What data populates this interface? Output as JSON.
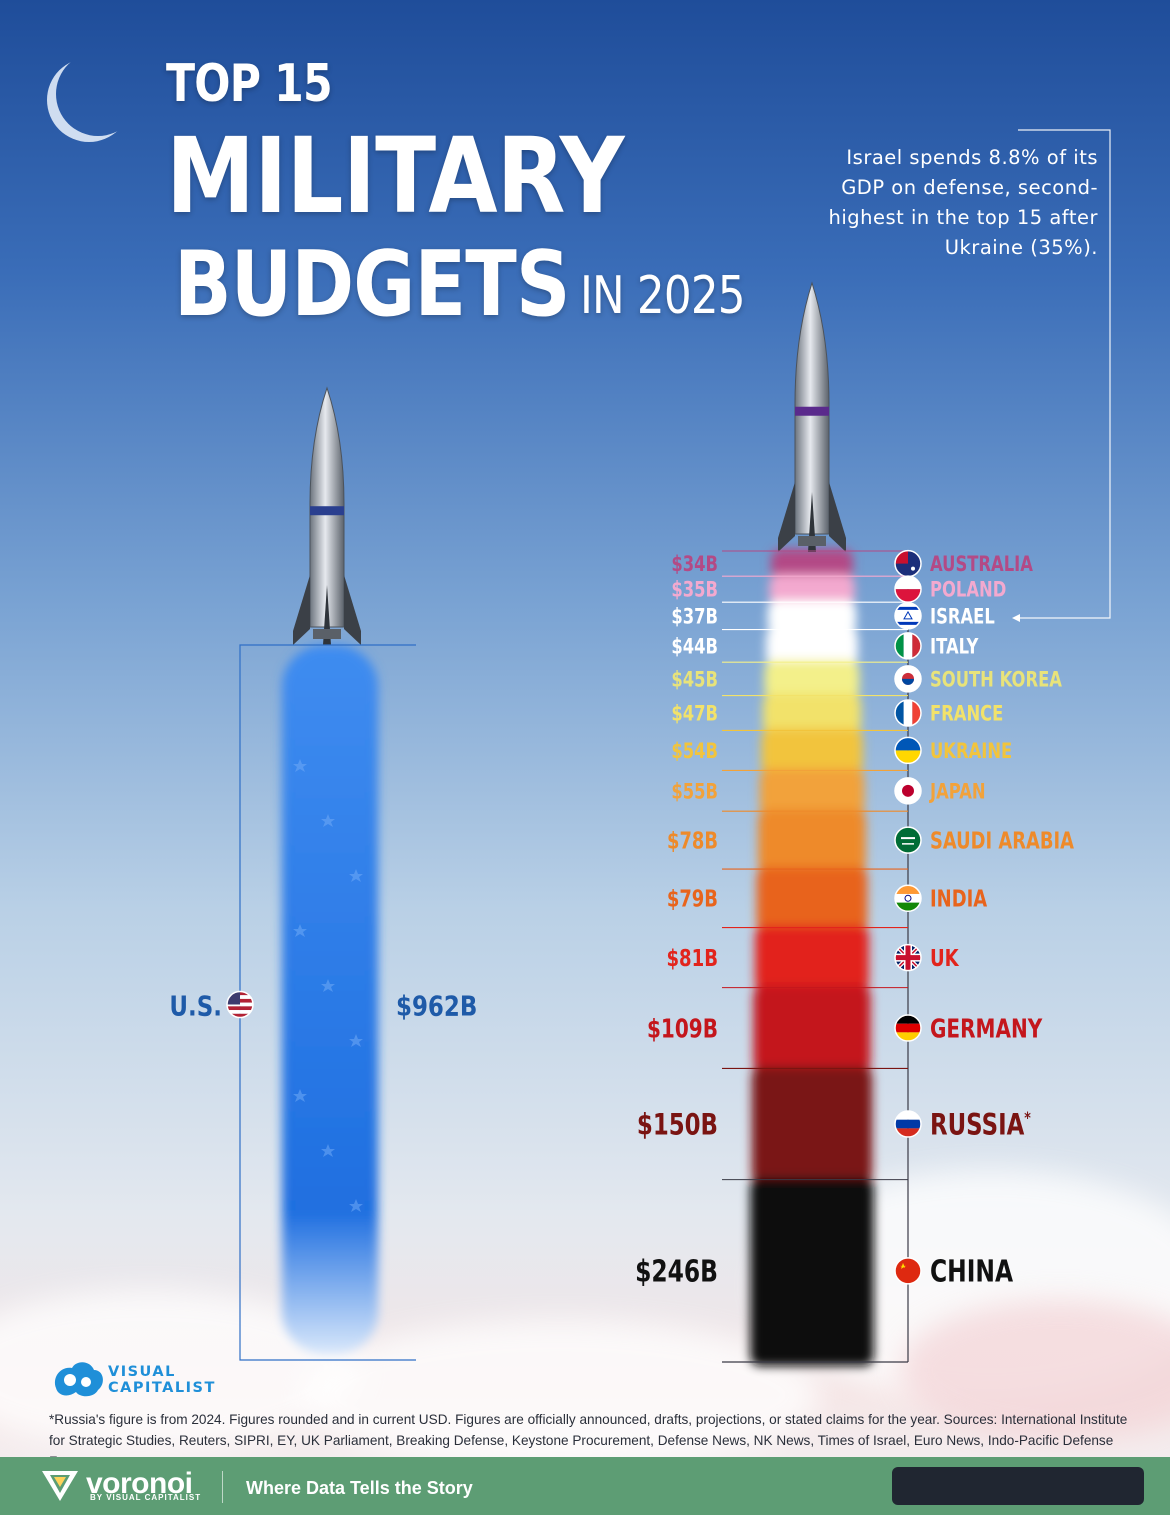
{
  "title": {
    "line1": "TOP 15",
    "line2": "MILITARY",
    "line3": "BUDGETS",
    "line3_suffix": "IN 2025"
  },
  "annotation": "Israel spends 8.8% of its GDP on defense, second-highest in the top 15 after Ukraine (35%).",
  "colors": {
    "us_smoke": "#1f6fe0",
    "us_label": "#1e5aa8",
    "accent_line": "#ffffff",
    "footer_bg": "#5d9d74"
  },
  "chart_data": {
    "type": "bar",
    "layout": "stacked rocket smoke trails",
    "unit": "USD billions",
    "us": {
      "country": "U.S.",
      "value": 962,
      "label": "$962B",
      "flag_icon": "us-flag-icon"
    },
    "stack": [
      {
        "country": "AUSTRALIA",
        "value": 34,
        "label": "$34B",
        "color": "#b34a86",
        "flag_icon": "australia-flag-icon"
      },
      {
        "country": "POLAND",
        "value": 35,
        "label": "$35B",
        "color": "#f3a9cf",
        "flag_icon": "poland-flag-icon"
      },
      {
        "country": "ISRAEL",
        "value": 37,
        "label": "$37B",
        "color": "#ffffff",
        "flag_icon": "israel-flag-icon"
      },
      {
        "country": "ITALY",
        "value": 44,
        "label": "$44B",
        "color": "#ffffff",
        "flag_icon": "italy-flag-icon"
      },
      {
        "country": "SOUTH KOREA",
        "value": 45,
        "label": "$45B",
        "color": "#f3f08a",
        "flag_icon": "south-korea-flag-icon"
      },
      {
        "country": "FRANCE",
        "value": 47,
        "label": "$47B",
        "color": "#f2e26a",
        "flag_icon": "france-flag-icon"
      },
      {
        "country": "UKRAINE",
        "value": 54,
        "label": "$54B",
        "color": "#f2c43c",
        "flag_icon": "ukraine-flag-icon"
      },
      {
        "country": "JAPAN",
        "value": 55,
        "label": "$55B",
        "color": "#f2a23a",
        "flag_icon": "japan-flag-icon"
      },
      {
        "country": "SAUDI ARABIA",
        "value": 78,
        "label": "$78B",
        "color": "#ee8a2a",
        "flag_icon": "saudi-arabia-flag-icon"
      },
      {
        "country": "INDIA",
        "value": 79,
        "label": "$79B",
        "color": "#e8641c",
        "flag_icon": "india-flag-icon"
      },
      {
        "country": "UK",
        "value": 81,
        "label": "$81B",
        "color": "#e2241c",
        "flag_icon": "uk-flag-icon"
      },
      {
        "country": "GERMANY",
        "value": 109,
        "label": "$109B",
        "color": "#c4161c",
        "flag_icon": "germany-flag-icon"
      },
      {
        "country": "RUSSIA",
        "value": 150,
        "label": "$150B",
        "color": "#7a1412",
        "flag_icon": "russia-flag-icon",
        "marker": "*"
      },
      {
        "country": "CHINA",
        "value": 246,
        "label": "$246B",
        "color": "#111111",
        "flag_icon": "china-flag-icon"
      }
    ]
  },
  "logo": {
    "line1": "VISUAL",
    "line2": "CAPITALIST"
  },
  "footnote": "*Russia's figure is from 2024. Figures rounded and in current USD. Figures are officially announced, drafts, projections, or stated claims for the year. Sources: International Institute for Strategic Studies, Reuters, SIPRI, EY, UK Parliament, Breaking Defense, Keystone Procurement, Defense News, NK News, Times of Israel, Euro News, Indo-Pacific Defense Forum",
  "footer": {
    "brand": "voronoi",
    "brand_sub": "BY VISUAL CAPITALIST",
    "tagline": "Where Data Tells the Story"
  }
}
